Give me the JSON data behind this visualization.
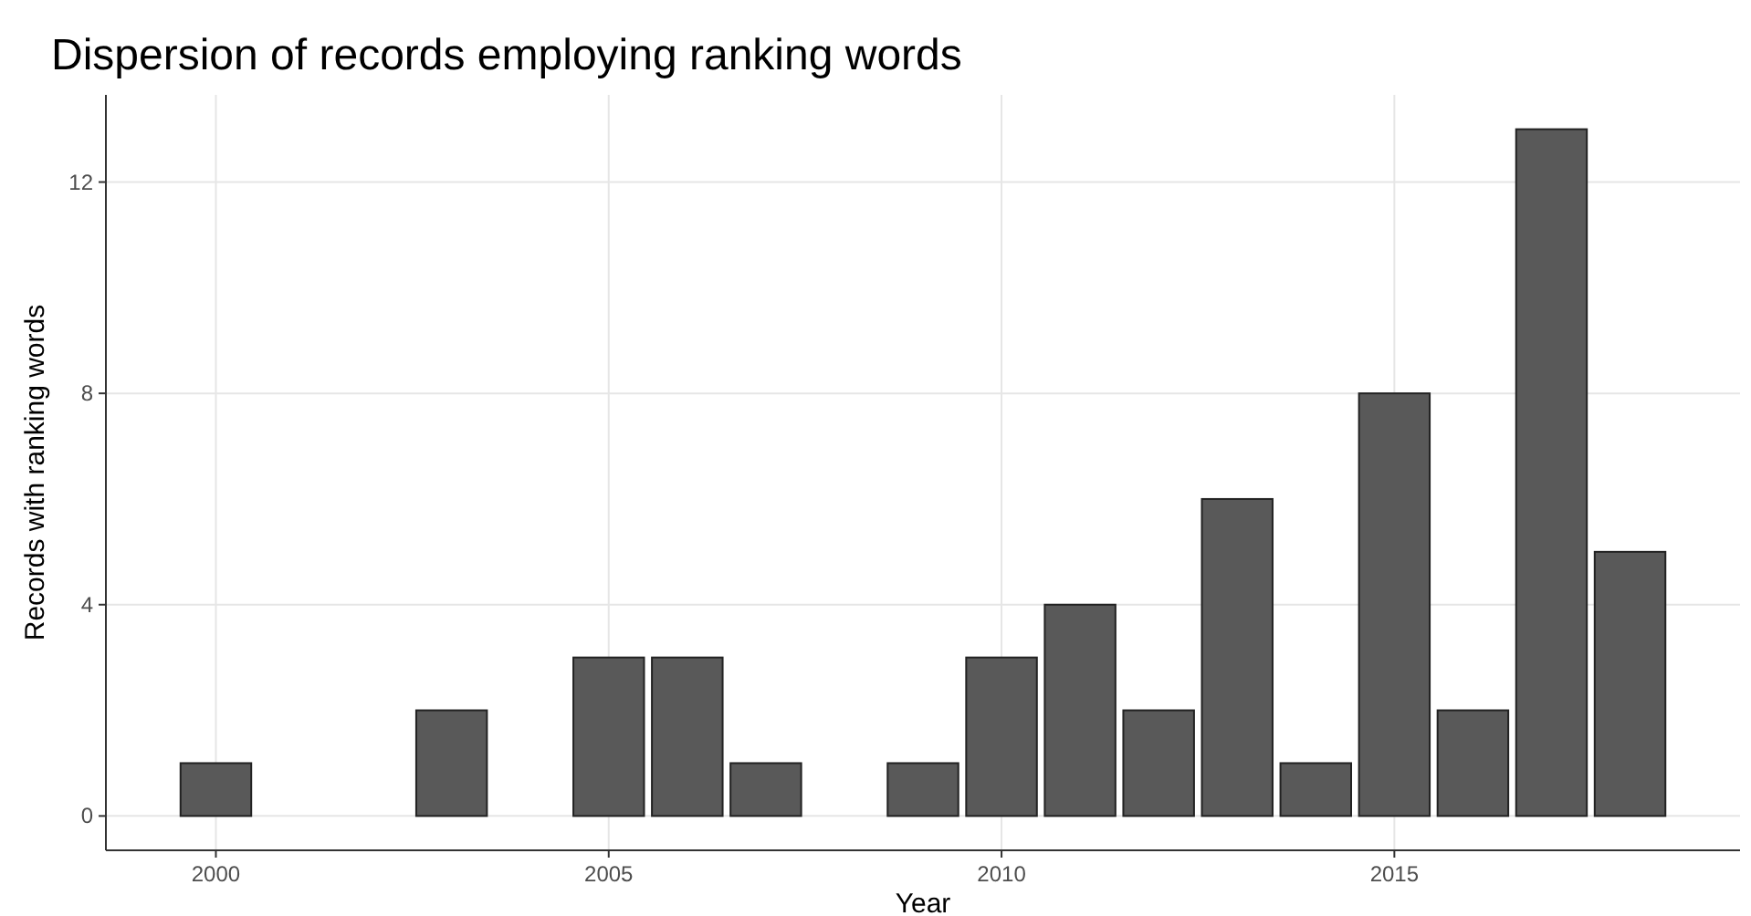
{
  "chart_data": {
    "type": "bar",
    "title": "Dispersion of records employing ranking words",
    "xlabel": "Year",
    "ylabel": "Records with ranking words",
    "x": [
      2000,
      2003,
      2005,
      2006,
      2007,
      2009,
      2010,
      2011,
      2012,
      2013,
      2014,
      2015,
      2016,
      2017,
      2018
    ],
    "values": [
      1,
      2,
      3,
      3,
      1,
      1,
      3,
      4,
      2,
      6,
      1,
      8,
      2,
      13,
      5
    ],
    "color": "#595959",
    "xlim": [
      1998.6,
      2019.4
    ],
    "xticks": [
      2000,
      2005,
      2010,
      2015
    ],
    "ylim": [
      -0.65,
      13.65
    ],
    "yticks": [
      0,
      4,
      8,
      12
    ],
    "grid": true
  }
}
